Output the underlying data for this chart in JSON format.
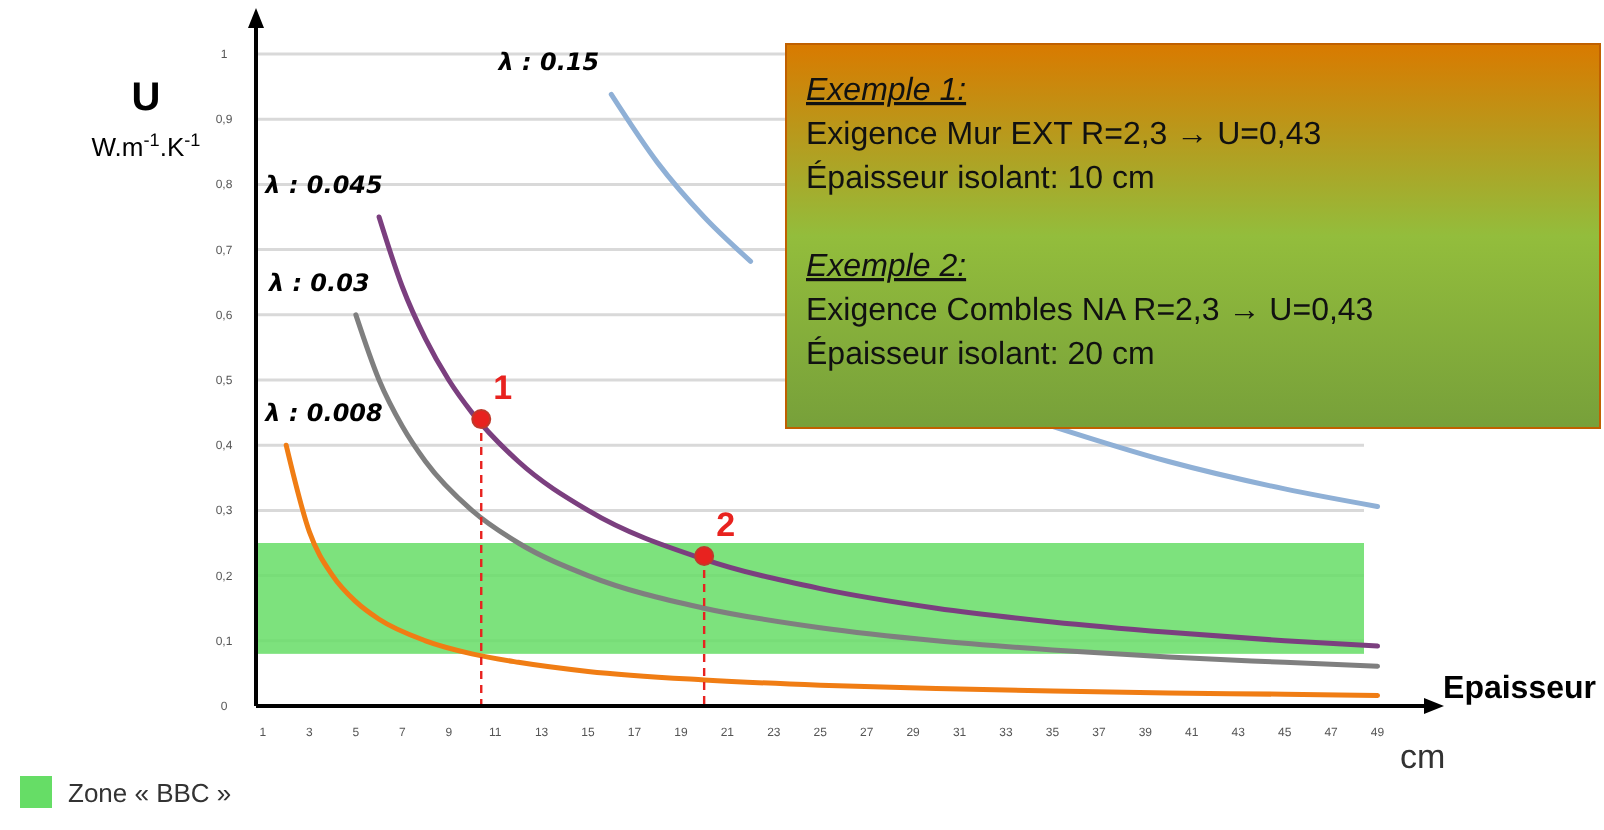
{
  "chart_data": {
    "type": "line",
    "ylabel": "U",
    "xlabel": "Epaisseur",
    "xlim": [
      0.7,
      51
    ],
    "ylim": [
      0,
      1
    ],
    "xticks": [
      1,
      3,
      5,
      7,
      9,
      11,
      13,
      15,
      17,
      19,
      21,
      23,
      25,
      27,
      29,
      31,
      33,
      35,
      37,
      39,
      41,
      43,
      45,
      47,
      49
    ],
    "yticks": [
      {
        "value": 0,
        "label": "0"
      },
      {
        "value": 0.1,
        "label": "0,1"
      },
      {
        "value": 0.2,
        "label": "0,2"
      },
      {
        "value": 0.3,
        "label": "0,3"
      },
      {
        "value": 0.4,
        "label": "0,4"
      },
      {
        "value": 0.5,
        "label": "0,5"
      },
      {
        "value": 0.6,
        "label": "0,6"
      },
      {
        "value": 0.7,
        "label": "0,7"
      },
      {
        "value": 0.8,
        "label": "0,8"
      },
      {
        "value": 0.9,
        "label": "0,9"
      },
      {
        "value": 1,
        "label": "1"
      }
    ],
    "grid": "y",
    "marker": "none",
    "line_style": "solid",
    "bands": [
      {
        "axis": "y",
        "from": 0.08,
        "to": 0.25,
        "label": "Zone « BBC »",
        "color": "#66dd66"
      }
    ],
    "series": [
      {
        "name": "λ : 0.15",
        "color": "#8fb0d6",
        "x": [
          16,
          18,
          20,
          22,
          25,
          28,
          30,
          35,
          40,
          45,
          49
        ],
        "values": [
          0.938,
          0.833,
          0.75,
          0.682,
          null,
          null,
          null,
          0.429,
          0.375,
          0.333,
          0.306
        ]
      },
      {
        "name": "λ : 0.045",
        "color": "#7b3f7f",
        "x": [
          6,
          7,
          8,
          9,
          10,
          12,
          15,
          20,
          25,
          30,
          35,
          40,
          45,
          49
        ],
        "values": [
          0.75,
          0.643,
          0.563,
          0.5,
          0.45,
          0.375,
          0.3,
          0.225,
          0.18,
          0.15,
          0.129,
          0.113,
          0.1,
          0.092
        ]
      },
      {
        "name": "λ : 0.03",
        "color": "#7f7f7f",
        "x": [
          5,
          6,
          7,
          8,
          10,
          12,
          15,
          20,
          25,
          30,
          35,
          40,
          45,
          49
        ],
        "values": [
          0.6,
          0.5,
          0.429,
          0.375,
          0.3,
          0.25,
          0.2,
          0.15,
          0.12,
          0.1,
          0.086,
          0.075,
          0.067,
          0.061
        ]
      },
      {
        "name": "λ : 0.008",
        "color": "#f07d14",
        "x": [
          2,
          3,
          4,
          5,
          6,
          8,
          10,
          12,
          15,
          20,
          25,
          30,
          35,
          40,
          45,
          49
        ],
        "values": [
          0.4,
          0.267,
          0.2,
          0.16,
          0.133,
          0.1,
          0.08,
          0.067,
          0.053,
          0.04,
          0.032,
          0.027,
          0.023,
          0.02,
          0.018,
          0.016
        ]
      },
      {
        "type": "scatter",
        "color": "#e8221f",
        "marker": "circle",
        "x": [
          10.4,
          20
        ],
        "values": [
          0.44,
          0.23
        ]
      }
    ],
    "annotations": [
      "W.m$^{-1}$.K$^{-1}$",
      "cm",
      "Exemple 1:",
      "Exigence Mur EXT R=2,3 → U=0,43",
      "Épaisseur isolant: 10 cm",
      "Exemple 2:",
      "Exigence Combles NA  R=2,3 → U=0,43",
      "Épaisseur isolant: 20 cm",
      {
        "text": "1",
        "x": 10.4,
        "y": 0.44
      },
      {
        "text": "2",
        "x": 20,
        "y": 0.23
      }
    ]
  }
}
